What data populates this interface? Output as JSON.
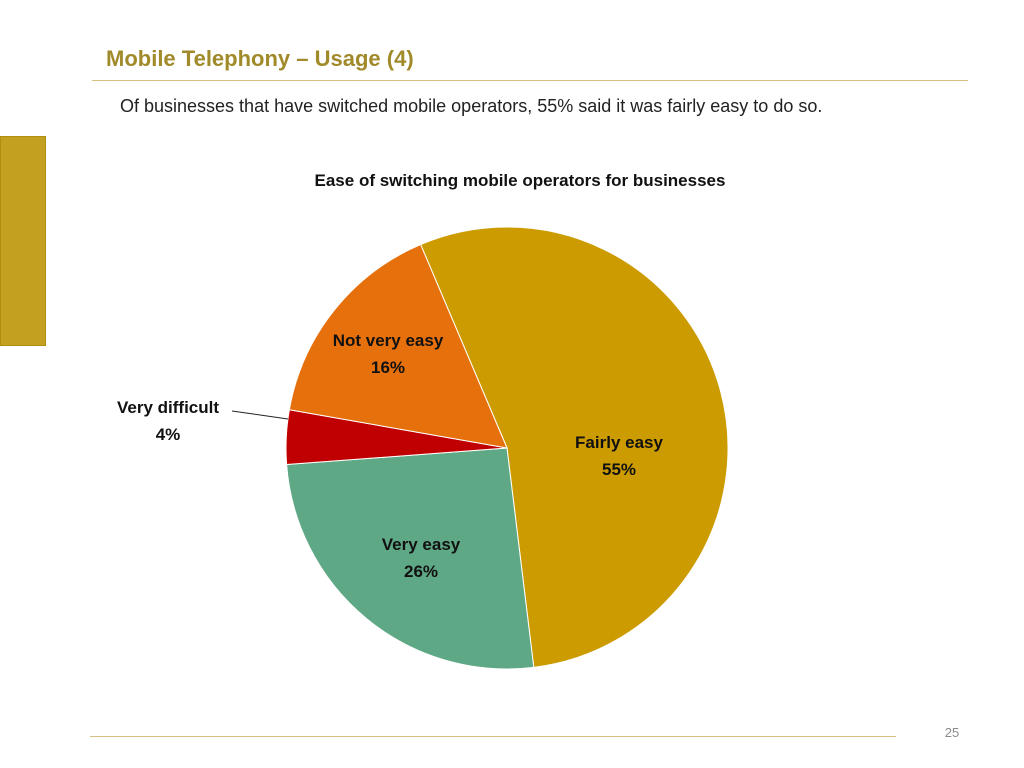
{
  "slide": {
    "title": "Mobile Telephony – Usage (4)",
    "subtitle": "Of businesses that have switched mobile operators, 55% said it was fairly easy to do so.",
    "page_number": "25",
    "accent_color": "#c4a020",
    "title_color": "#a08a2a"
  },
  "chart_data": {
    "type": "pie",
    "title": "Ease of switching mobile operators for businesses",
    "slices": [
      {
        "label": "Fairly easy",
        "value": 55,
        "value_label": "55%",
        "color": "#cc9b00"
      },
      {
        "label": "Very easy",
        "value": 26,
        "value_label": "26%",
        "color": "#5fa886"
      },
      {
        "label": "Very difficult",
        "value": 4,
        "value_label": "4%",
        "color": "#c00000"
      },
      {
        "label": "Not very easy",
        "value": 16,
        "value_label": "16%",
        "color": "#e6700c"
      }
    ],
    "start": "upper-left, clockwise",
    "legend": "none"
  }
}
